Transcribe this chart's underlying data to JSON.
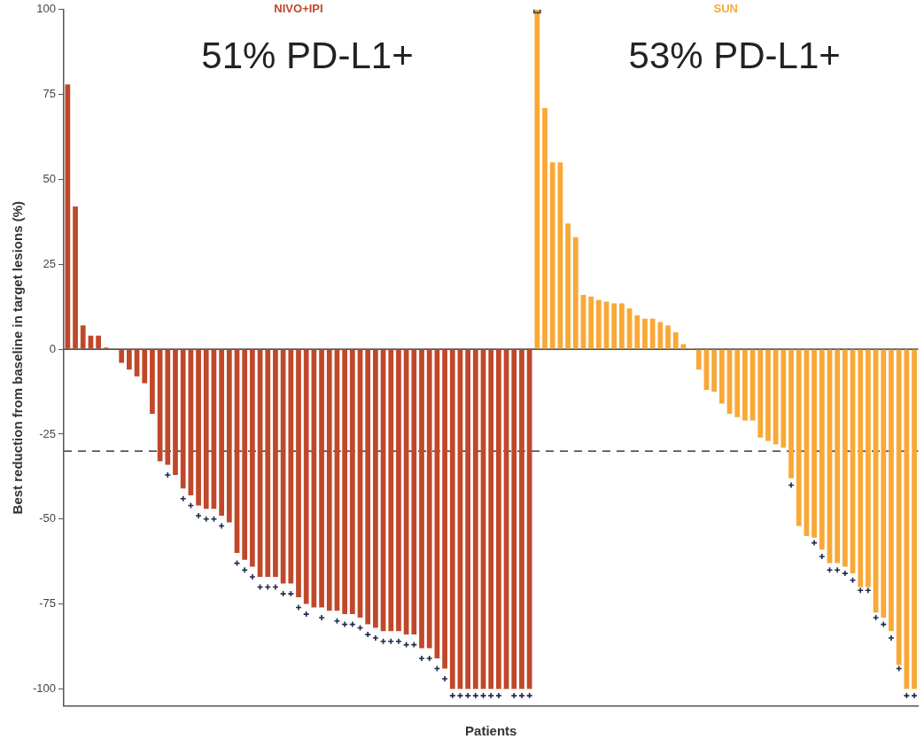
{
  "chart_data": {
    "type": "bar",
    "xlabel": "Patients",
    "ylabel": "Best reduction from baseline in target lesions (%)",
    "categories": [
      null,
      null,
      null,
      null,
      null,
      null,
      null,
      null,
      null,
      null,
      null,
      null,
      null,
      null,
      null,
      null,
      null,
      null,
      null,
      null,
      null,
      null,
      null,
      null,
      null,
      null,
      null,
      null,
      null,
      null,
      null,
      null,
      null,
      null,
      null,
      null,
      null,
      null,
      null,
      null,
      null,
      null,
      null,
      null,
      null,
      null,
      null,
      null,
      null,
      null,
      null,
      null,
      null,
      null,
      null,
      null,
      null,
      null,
      null,
      null,
      null,
      null,
      null,
      null,
      null,
      null,
      null,
      null,
      null,
      null,
      null,
      null,
      null,
      null,
      null,
      null,
      null,
      null,
      null,
      null,
      null,
      null,
      null,
      null,
      null,
      null,
      null,
      null,
      null,
      null,
      null,
      null,
      null,
      null,
      null,
      null,
      null,
      null,
      null,
      null,
      null,
      null,
      null,
      null,
      null,
      null,
      null,
      null,
      null,
      null,
      null
    ],
    "series": [
      {
        "name": "NIVO+IPI",
        "color": "#c0482a",
        "values": [
          78,
          42,
          7,
          4,
          4,
          0.5,
          0,
          -4,
          -6,
          -8,
          -10,
          -19,
          -33,
          -34,
          -37,
          -41,
          -43,
          -46,
          -47,
          -47,
          -49,
          -51,
          -60,
          -62,
          -64,
          -67,
          -67,
          -67,
          -69,
          -69,
          -73,
          -75,
          -76,
          -76,
          -77,
          -77,
          -78,
          -78,
          -79,
          -81,
          -82,
          -83,
          -83,
          -83,
          -84,
          -84,
          -88,
          -88,
          -91,
          -94,
          -100,
          -100,
          -100,
          -100,
          -100,
          -100,
          -100,
          -100,
          -100,
          -100,
          -100,
          null,
          null,
          null,
          null,
          null,
          null,
          null,
          null,
          null,
          null,
          null,
          null,
          null,
          null,
          null,
          null,
          null,
          null,
          null,
          null,
          null,
          null,
          null,
          null,
          null,
          null,
          null,
          null,
          null,
          null,
          null,
          null,
          null,
          null,
          null,
          null,
          null,
          null,
          null,
          null,
          null,
          null,
          null,
          null,
          null,
          null,
          null,
          null,
          null,
          null
        ]
      },
      {
        "name": "SUN",
        "color": "#f9a836",
        "values": [
          null,
          null,
          null,
          null,
          null,
          null,
          null,
          null,
          null,
          null,
          null,
          null,
          null,
          null,
          null,
          null,
          null,
          null,
          null,
          null,
          null,
          null,
          null,
          null,
          null,
          null,
          null,
          null,
          null,
          null,
          null,
          null,
          null,
          null,
          null,
          null,
          null,
          null,
          null,
          null,
          null,
          null,
          null,
          null,
          null,
          null,
          null,
          null,
          null,
          null,
          null,
          null,
          null,
          null,
          null,
          null,
          null,
          null,
          null,
          null,
          null,
          100,
          71,
          55,
          55,
          37,
          33,
          16,
          15.5,
          14.5,
          14,
          13.5,
          13.5,
          12,
          10,
          9,
          9,
          8,
          7,
          5,
          1.5,
          0.3,
          -6,
          -12,
          -12.5,
          -16,
          -19,
          -20,
          -21,
          -21,
          -26,
          -27,
          -28,
          -29,
          -38,
          -52,
          -55,
          -55.5,
          -59,
          -63,
          -63,
          -64,
          -66,
          -70,
          -70,
          -77.5,
          -79,
          -83,
          -93,
          -100,
          -100
        ]
      },
      {
        "type": "scatter",
        "marker": "cross",
        "color": "#1d2b4a",
        "values": [
          null,
          null,
          null,
          null,
          null,
          null,
          null,
          null,
          null,
          null,
          null,
          null,
          null,
          -37,
          null,
          -44,
          -46,
          -49,
          -50,
          -50,
          -52,
          null,
          -63,
          -65,
          -67,
          -70,
          -70,
          -70,
          -72,
          -72,
          -76,
          -78,
          null,
          -79,
          null,
          -80,
          -81,
          -81,
          -82,
          -84,
          -85,
          -86,
          -86,
          -86,
          -87,
          -87,
          -91,
          -91,
          -94,
          -97,
          -102,
          -102,
          -102,
          -102,
          -102,
          -102,
          -102,
          null,
          -102,
          -102,
          -102,
          null,
          null,
          null,
          null,
          null,
          null,
          null,
          null,
          null,
          null,
          null,
          null,
          null,
          null,
          null,
          null,
          null,
          null,
          null,
          null,
          null,
          null,
          null,
          null,
          null,
          null,
          null,
          null,
          null,
          null,
          null,
          null,
          null,
          -40,
          null,
          null,
          -57,
          -61,
          -65,
          -65,
          -66,
          -68,
          -71,
          -71,
          -79,
          -81,
          -85,
          -94,
          -102,
          -102
        ]
      },
      {
        "type": "scatter",
        "marker": "square",
        "color": "#444444",
        "values": [
          null,
          null,
          null,
          null,
          null,
          null,
          null,
          null,
          null,
          null,
          null,
          null,
          null,
          null,
          null,
          null,
          null,
          null,
          null,
          null,
          null,
          null,
          null,
          null,
          null,
          null,
          null,
          null,
          null,
          null,
          null,
          null,
          null,
          null,
          null,
          null,
          null,
          null,
          null,
          null,
          null,
          null,
          null,
          null,
          null,
          null,
          null,
          null,
          null,
          null,
          null,
          null,
          null,
          null,
          null,
          null,
          null,
          null,
          null,
          null,
          null,
          100,
          null,
          null,
          null,
          null,
          null,
          null,
          null,
          null,
          null,
          null,
          null,
          null,
          null,
          null,
          null,
          null,
          null,
          null,
          null,
          null,
          null,
          null,
          null,
          null,
          null,
          null,
          null,
          null,
          null,
          null,
          null,
          null,
          null,
          null,
          null,
          null,
          null,
          null,
          null,
          null,
          null,
          null,
          null,
          null,
          null,
          null,
          null,
          null,
          null
        ]
      }
    ],
    "ylim": [
      -105,
      100
    ],
    "yticks": [
      -100,
      -75,
      -50,
      -25,
      0,
      25,
      50,
      75,
      100
    ],
    "ref_lines": [
      {
        "axis": "y",
        "value": 0,
        "color": "#555555",
        "line_style": "solid"
      },
      {
        "axis": "y",
        "value": -30,
        "color": "#555555",
        "line_style": "dashed"
      }
    ],
    "annotations": [
      "51% PD-L1+",
      "53% PD-L1+"
    ]
  }
}
